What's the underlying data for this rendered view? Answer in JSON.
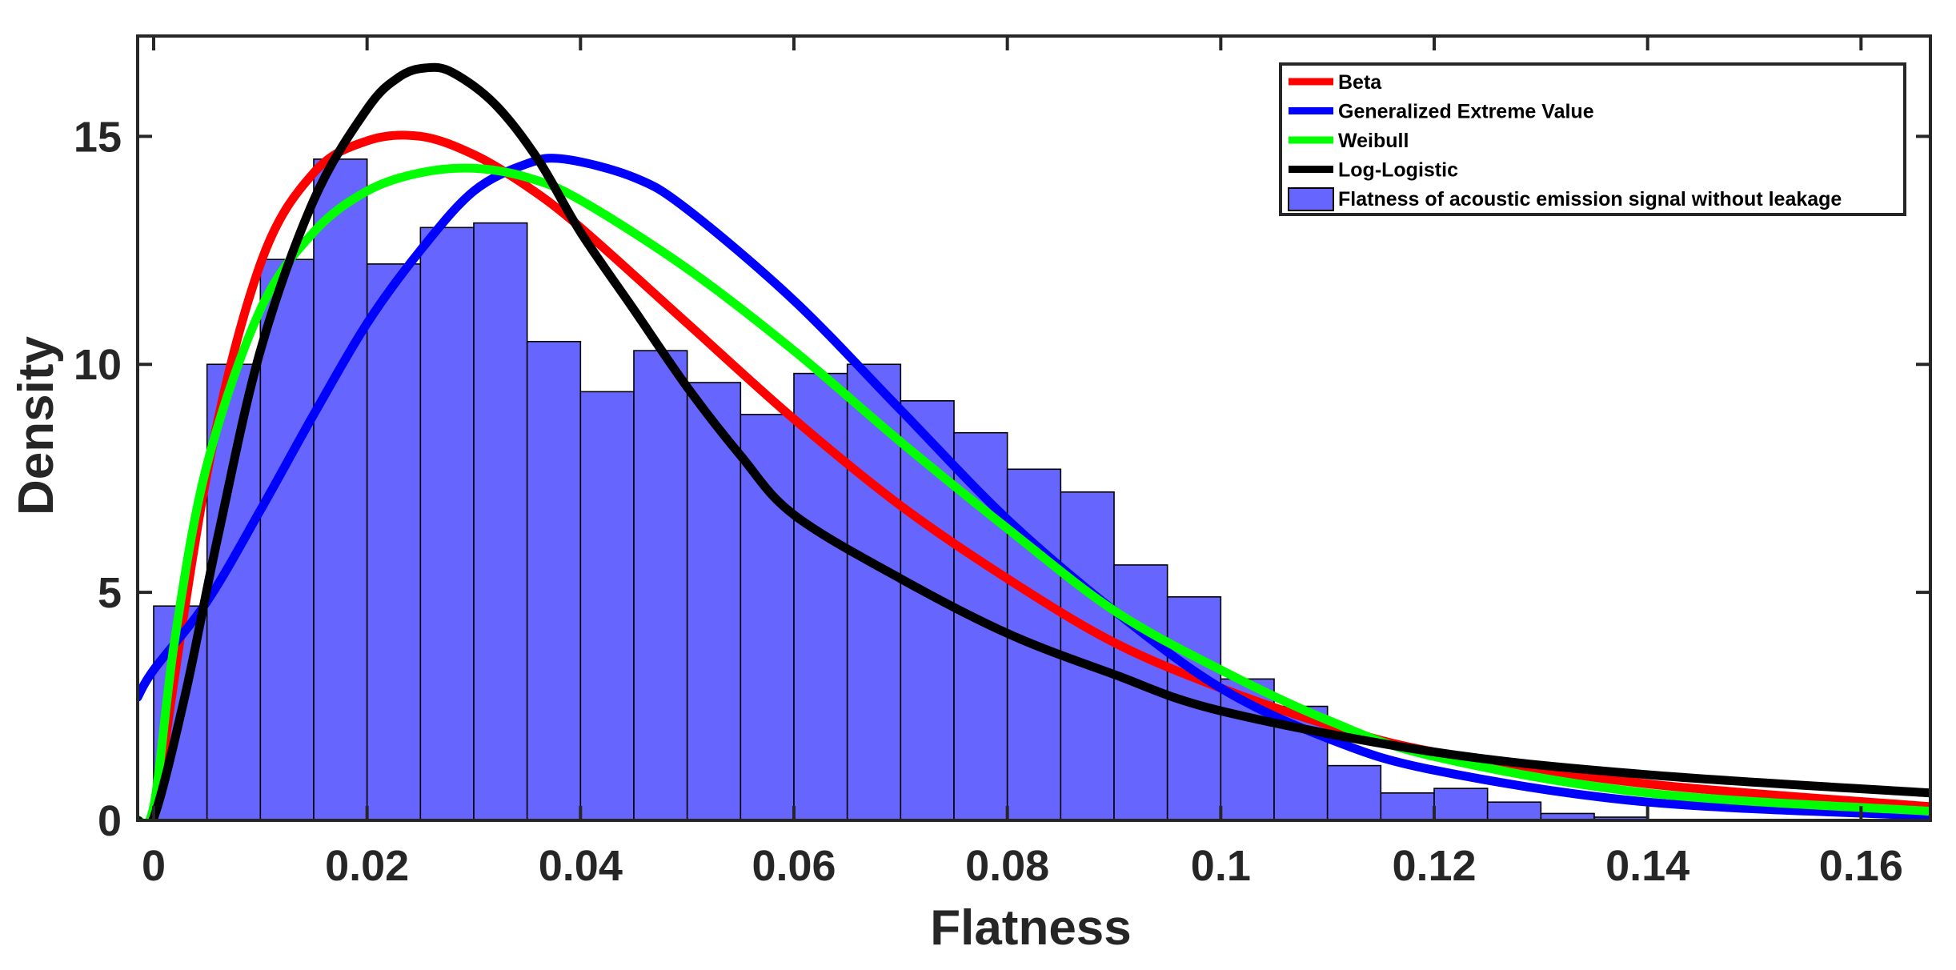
{
  "chart_data": {
    "type": "bar",
    "title": "",
    "xlabel": "Flatness",
    "ylabel": "Density",
    "xlim": [
      -0.0015,
      0.1665
    ],
    "ylim": [
      0,
      17.2
    ],
    "xticks": [
      0,
      0.02,
      0.04,
      0.06,
      0.08,
      0.1,
      0.12,
      0.14,
      0.16
    ],
    "xtick_labels": [
      "0",
      "0.02",
      "0.04",
      "0.06",
      "0.08",
      "0.1",
      "0.12",
      "0.14",
      "0.16"
    ],
    "yticks": [
      0,
      5,
      10,
      15
    ],
    "ytick_labels": [
      "0",
      "5",
      "10",
      "15"
    ],
    "grid": false,
    "legend_position": "top-right",
    "histogram": {
      "name": "Flatness of acoustic emission signal without leakage",
      "color": "#6666ff",
      "bin_width": 0.005,
      "bin_start": 0,
      "values": [
        4.7,
        10.0,
        12.3,
        14.5,
        12.2,
        13.0,
        13.1,
        10.5,
        9.4,
        10.3,
        9.6,
        8.9,
        9.8,
        10.0,
        9.2,
        8.5,
        7.7,
        7.2,
        5.6,
        4.9,
        3.1,
        2.5,
        1.2,
        0.6,
        0.7,
        0.4,
        0.15,
        0.07
      ]
    },
    "series": [
      {
        "name": "Beta",
        "color": "#ff0000",
        "x": [
          0,
          0.005,
          0.01,
          0.015,
          0.02,
          0.025,
          0.03,
          0.035,
          0.04,
          0.05,
          0.06,
          0.07,
          0.08,
          0.09,
          0.1,
          0.11,
          0.12,
          0.14,
          0.1665
        ],
        "values": [
          0,
          7.6,
          12.2,
          14.2,
          14.9,
          15.0,
          14.6,
          13.9,
          13.0,
          10.9,
          8.8,
          6.9,
          5.3,
          3.9,
          2.9,
          2.1,
          1.5,
          0.8,
          0.3
        ]
      },
      {
        "name": "Generalized Extreme Value",
        "color": "#0000ff",
        "x": [
          -0.0015,
          0,
          0.005,
          0.01,
          0.015,
          0.02,
          0.025,
          0.03,
          0.035,
          0.0385,
          0.045,
          0.05,
          0.06,
          0.07,
          0.08,
          0.09,
          0.1,
          0.11,
          0.12,
          0.14,
          0.1665
        ],
        "values": [
          2.7,
          3.3,
          4.8,
          6.8,
          8.9,
          10.9,
          12.5,
          13.8,
          14.4,
          14.5,
          14.1,
          13.4,
          11.4,
          9.0,
          6.6,
          4.6,
          2.9,
          1.8,
          1.1,
          0.4,
          0.1
        ]
      },
      {
        "name": "Weibull",
        "color": "#00ff00",
        "x": [
          -0.0015,
          0,
          0.002,
          0.005,
          0.01,
          0.015,
          0.02,
          0.025,
          0.03,
          0.035,
          0.04,
          0.05,
          0.06,
          0.07,
          0.08,
          0.09,
          0.1,
          0.11,
          0.12,
          0.14,
          0.1665
        ],
        "values": [
          0,
          0.3,
          4.0,
          7.8,
          11.2,
          12.9,
          13.8,
          14.2,
          14.3,
          14.1,
          13.6,
          12.1,
          10.3,
          8.3,
          6.4,
          4.6,
          3.3,
          2.2,
          1.4,
          0.6,
          0.2
        ]
      },
      {
        "name": "Log-Logistic",
        "color": "#000000",
        "x": [
          -0.0015,
          0,
          0.003,
          0.006,
          0.01,
          0.015,
          0.02,
          0.023,
          0.0255,
          0.028,
          0.032,
          0.036,
          0.04,
          0.045,
          0.05,
          0.055,
          0.06,
          0.07,
          0.08,
          0.09,
          0.1,
          0.12,
          0.14,
          0.1665
        ],
        "values": [
          0,
          0.05,
          2.8,
          6.2,
          10.3,
          13.6,
          15.6,
          16.3,
          16.5,
          16.4,
          15.7,
          14.5,
          12.9,
          11.2,
          9.5,
          8.0,
          6.7,
          5.3,
          4.1,
          3.2,
          2.4,
          1.5,
          1.0,
          0.6
        ]
      }
    ]
  }
}
